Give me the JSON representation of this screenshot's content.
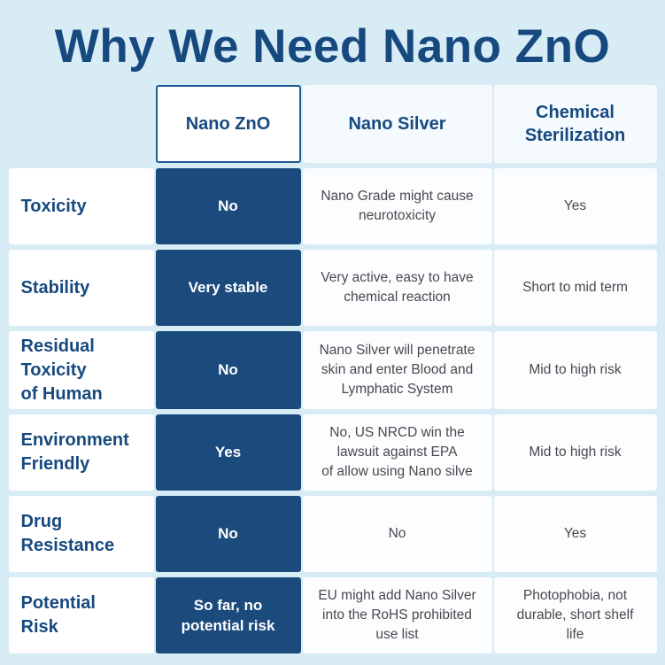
{
  "colors": {
    "background": "#d8ecf6",
    "accent_navy": "#17497f",
    "highlight_cell": "#1b4b7d",
    "header_border": "#1f5a94",
    "body_text": "#47494c"
  },
  "chart_data": {
    "type": "table",
    "title": "Why We Need Nano ZnO",
    "columns": [
      "",
      "Nano ZnO",
      "Nano Silver",
      "Chemical Sterilization"
    ],
    "highlight_column": "Nano ZnO",
    "rows": [
      {
        "label": "Toxicity",
        "nano_zno": "No",
        "nano_silver": "Nano Grade might cause\nneurotoxicity",
        "chemical_sterilization": "Yes"
      },
      {
        "label": "Stability",
        "nano_zno": "Very stable",
        "nano_silver": "Very active, easy to have\nchemical reaction",
        "chemical_sterilization": "Short to mid term"
      },
      {
        "label": "Residual\nToxicity\nof Human",
        "nano_zno": "No",
        "nano_silver": "Nano Silver will penetrate\nskin and enter Blood and\nLymphatic System",
        "chemical_sterilization": "Mid to high risk"
      },
      {
        "label": "Environment\nFriendly",
        "nano_zno": "Yes",
        "nano_silver": "No, US NRCD win the\nlawsuit against EPA\nof allow using Nano silve",
        "chemical_sterilization": "Mid to high risk"
      },
      {
        "label": "Drug\nResistance",
        "nano_zno": "No",
        "nano_silver": "No",
        "chemical_sterilization": "Yes"
      },
      {
        "label": "Potential\nRisk",
        "nano_zno": "So far, no\npotential risk",
        "nano_silver": "EU might add Nano Silver\ninto the RoHS prohibited\nuse list",
        "chemical_sterilization": "Photophobia, not\ndurable, short shelf\nlife"
      }
    ]
  }
}
